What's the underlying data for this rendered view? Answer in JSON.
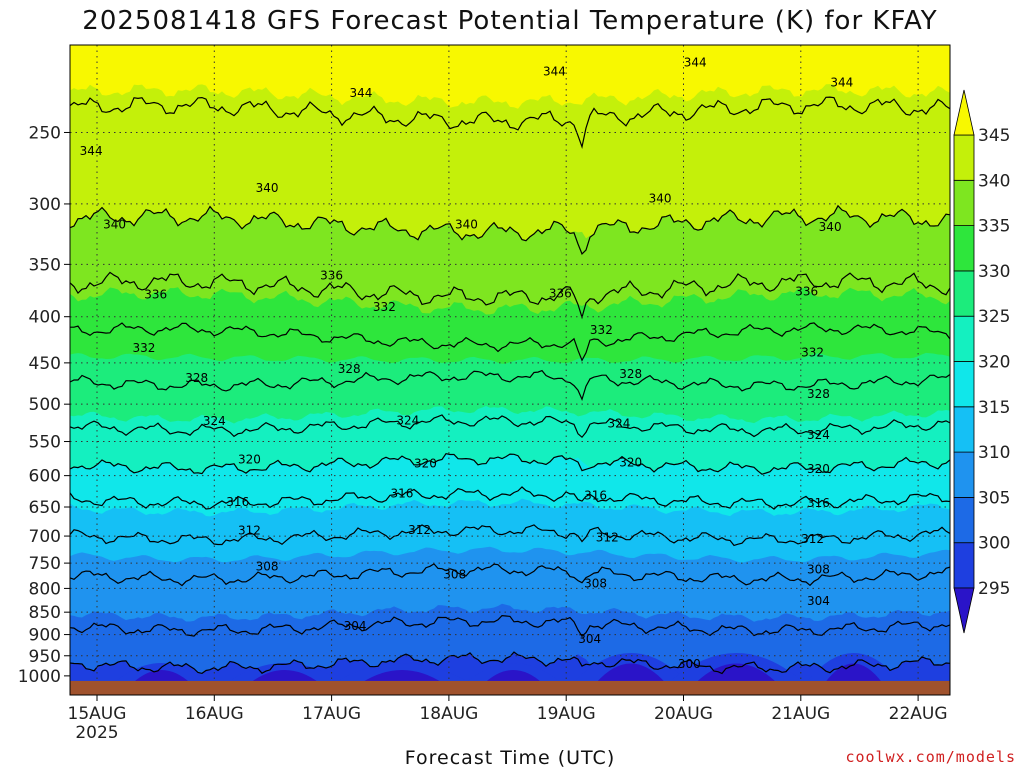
{
  "chart_data": {
    "type": "heatmap",
    "title": "2025081418 GFS Forecast Potential Temperature (K) for KFAY",
    "xlabel": "Forecast Time (UTC)",
    "credit": "coolwx.com/models",
    "x_ticks": [
      {
        "label": "15AUG",
        "sublabel": "2025",
        "day": 0
      },
      {
        "label": "16AUG",
        "day": 1
      },
      {
        "label": "17AUG",
        "day": 2
      },
      {
        "label": "18AUG",
        "day": 3
      },
      {
        "label": "19AUG",
        "day": 4
      },
      {
        "label": "20AUG",
        "day": 5
      },
      {
        "label": "21AUG",
        "day": 6
      },
      {
        "label": "22AUG",
        "day": 7
      }
    ],
    "y_ticks": [
      250,
      300,
      350,
      400,
      450,
      500,
      550,
      600,
      650,
      700,
      750,
      800,
      850,
      900,
      950,
      1000
    ],
    "y_axis": "pressure (hPa), log scale, inverted",
    "ylim": [
      1050,
      200
    ],
    "xlim_days": [
      -0.1,
      7.15
    ],
    "colorbar": {
      "levels": [
        295,
        300,
        305,
        310,
        315,
        320,
        325,
        330,
        335,
        340,
        345
      ],
      "colors": [
        "#2a14c8",
        "#1e3fe0",
        "#1d6ae6",
        "#1f93ef",
        "#15c0f5",
        "#10e7ea",
        "#14f0c0",
        "#1cec7c",
        "#2ee63c",
        "#7ee620",
        "#c4f00a",
        "#f8f800"
      ],
      "extend": "both"
    },
    "contour_interval": 4,
    "contour_labels": [
      {
        "value": 344,
        "x_day": -0.05,
        "p": 262
      },
      {
        "value": 344,
        "x_day": 2.25,
        "p": 226
      },
      {
        "value": 344,
        "x_day": 3.9,
        "p": 214
      },
      {
        "value": 344,
        "x_day": 5.1,
        "p": 209
      },
      {
        "value": 344,
        "x_day": 6.35,
        "p": 220
      },
      {
        "value": 340,
        "x_day": 0.15,
        "p": 316
      },
      {
        "value": 340,
        "x_day": 1.45,
        "p": 288
      },
      {
        "value": 340,
        "x_day": 3.15,
        "p": 316
      },
      {
        "value": 340,
        "x_day": 4.8,
        "p": 296
      },
      {
        "value": 340,
        "x_day": 6.25,
        "p": 318
      },
      {
        "value": 336,
        "x_day": 0.5,
        "p": 378
      },
      {
        "value": 336,
        "x_day": 2.0,
        "p": 360
      },
      {
        "value": 336,
        "x_day": 3.95,
        "p": 377
      },
      {
        "value": 336,
        "x_day": 6.05,
        "p": 375
      },
      {
        "value": 332,
        "x_day": 0.4,
        "p": 433
      },
      {
        "value": 332,
        "x_day": 2.45,
        "p": 390
      },
      {
        "value": 332,
        "x_day": 4.3,
        "p": 414
      },
      {
        "value": 332,
        "x_day": 6.1,
        "p": 438
      },
      {
        "value": 328,
        "x_day": 0.85,
        "p": 468
      },
      {
        "value": 328,
        "x_day": 2.15,
        "p": 457
      },
      {
        "value": 328,
        "x_day": 4.55,
        "p": 463
      },
      {
        "value": 328,
        "x_day": 6.15,
        "p": 487
      },
      {
        "value": 324,
        "x_day": 1.0,
        "p": 522
      },
      {
        "value": 324,
        "x_day": 2.65,
        "p": 521
      },
      {
        "value": 324,
        "x_day": 4.45,
        "p": 525
      },
      {
        "value": 324,
        "x_day": 6.15,
        "p": 541
      },
      {
        "value": 320,
        "x_day": 1.3,
        "p": 576
      },
      {
        "value": 320,
        "x_day": 2.8,
        "p": 582
      },
      {
        "value": 320,
        "x_day": 4.55,
        "p": 580
      },
      {
        "value": 320,
        "x_day": 6.15,
        "p": 590
      },
      {
        "value": 316,
        "x_day": 1.2,
        "p": 642
      },
      {
        "value": 316,
        "x_day": 2.6,
        "p": 628
      },
      {
        "value": 316,
        "x_day": 4.25,
        "p": 631
      },
      {
        "value": 316,
        "x_day": 6.15,
        "p": 643
      },
      {
        "value": 312,
        "x_day": 1.3,
        "p": 690
      },
      {
        "value": 312,
        "x_day": 2.75,
        "p": 689
      },
      {
        "value": 312,
        "x_day": 4.35,
        "p": 703
      },
      {
        "value": 312,
        "x_day": 6.1,
        "p": 705
      },
      {
        "value": 308,
        "x_day": 1.45,
        "p": 757
      },
      {
        "value": 308,
        "x_day": 3.05,
        "p": 772
      },
      {
        "value": 308,
        "x_day": 4.25,
        "p": 790
      },
      {
        "value": 308,
        "x_day": 6.15,
        "p": 762
      },
      {
        "value": 304,
        "x_day": 2.2,
        "p": 880
      },
      {
        "value": 304,
        "x_day": 4.2,
        "p": 910
      },
      {
        "value": 304,
        "x_day": 6.15,
        "p": 826
      },
      {
        "value": 300,
        "x_day": 5.05,
        "p": 970
      }
    ]
  }
}
